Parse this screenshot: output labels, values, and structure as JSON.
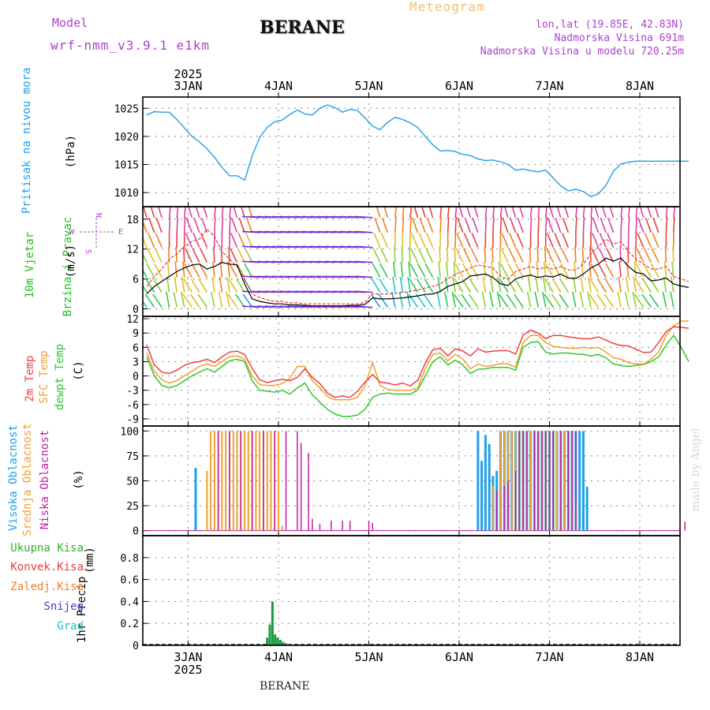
{
  "header": {
    "model_label": "Model",
    "model_value": "wrf-nmm_v3.9.1 e1km",
    "station": "BERANE",
    "title": "Meteogram",
    "lonlat": "lon,lat (19.85E, 42.83N)",
    "elevation": "Nadmorska Visina 691m",
    "model_elevation": "Nadmorska Visina u modelu 720.25m",
    "footer_station": "BERANE",
    "credit": "made by Angel"
  },
  "colors": {
    "pressure": "#1ea0e8",
    "wind_speed": "#000000",
    "gust": "#e83c3c",
    "temp2m": "#f04040",
    "sfc": "#f0a030",
    "dewpt": "#30c830",
    "cloud_high": "#1ea0e8",
    "cloud_mid": "#f0a030",
    "cloud_low": "#c020a0",
    "precip_total": "#1a9a40",
    "snow": "#4040d8",
    "label_purple": "#b040d0",
    "label_orange": "#f0b040"
  },
  "chart_data": [
    {
      "type": "line",
      "name": "pressure",
      "ylabel_title": "Pritisak na nivou mora",
      "ylabel_unit": "(hPa)",
      "ylim": [
        1007.5,
        1027
      ],
      "yticks": [
        1010,
        1015,
        1020,
        1025
      ],
      "x_hours": [
        0,
        2,
        4,
        6,
        8,
        10,
        12,
        14,
        16,
        18,
        20,
        22,
        24,
        26,
        28,
        30,
        32,
        34,
        36,
        38,
        40,
        42,
        44,
        46,
        48,
        50,
        52,
        54,
        56,
        58,
        60,
        62,
        64,
        66,
        68,
        70,
        72,
        74,
        76,
        78,
        80,
        82,
        84,
        86,
        88,
        90,
        92,
        94,
        96,
        98,
        100,
        102,
        104,
        106,
        108,
        110,
        112,
        114,
        116,
        118,
        120,
        122,
        124,
        126,
        128,
        130,
        132,
        134,
        136,
        138,
        140,
        142,
        144
      ],
      "series": [
        {
          "values": [
            1023.8,
            1024.4,
            1024.3,
            1024.3,
            1023.0,
            1021.5,
            1020.0,
            1019.0,
            1017.8,
            1016.3,
            1014.5,
            1013.0,
            1013.0,
            1012.2,
            1016.5,
            1019.8,
            1021.6,
            1022.6,
            1022.9,
            1023.9,
            1024.7,
            1024.0,
            1023.8,
            1025.0,
            1025.6,
            1025.1,
            1024.3,
            1024.8,
            1024.6,
            1023.3,
            1021.8,
            1021.2,
            1022.5,
            1023.4,
            1023.0,
            1022.4,
            1021.6,
            1020.0,
            1018.5,
            1017.4,
            1017.5,
            1017.3,
            1016.8,
            1016.6,
            1016.0,
            1015.7,
            1015.8,
            1015.5,
            1015.0,
            1014.0,
            1014.2,
            1013.9,
            1013.7,
            1014.0,
            1012.6,
            1011.2,
            1010.3,
            1010.6,
            1010.2,
            1009.3,
            1009.8,
            1011.3,
            1013.8,
            1015.1,
            1015.4,
            1015.6,
            1015.6,
            1015.6,
            1015.6,
            1015.6,
            1015.6,
            1015.6,
            1015.6
          ]
        }
      ]
    },
    {
      "type": "line",
      "name": "wind",
      "ylabel_title": "10m Vjetar",
      "ylabel_title2": "Brzina i Pravac",
      "ylabel_unit": "(m/s)",
      "compass": {
        "n": "N",
        "w": "W",
        "e": "E",
        "s": "S"
      },
      "ylim": [
        -1.5,
        20.5
      ],
      "yticks": [
        0,
        6,
        12,
        18
      ],
      "x_hours": [
        0,
        2,
        4,
        6,
        8,
        10,
        12,
        14,
        16,
        18,
        20,
        22,
        24,
        26,
        28,
        30,
        32,
        34,
        36,
        38,
        40,
        42,
        44,
        46,
        48,
        50,
        52,
        54,
        56,
        58,
        60,
        62,
        64,
        66,
        68,
        70,
        72,
        74,
        76,
        78,
        80,
        82,
        84,
        86,
        88,
        90,
        92,
        94,
        96,
        98,
        100,
        102,
        104,
        106,
        108,
        110,
        112,
        114,
        116,
        118,
        120,
        122,
        124,
        126,
        128,
        130,
        132,
        134,
        136,
        138,
        140,
        142,
        144
      ],
      "series": [
        {
          "name": "speed",
          "values": [
            3.0,
            4.5,
            5.5,
            6.5,
            7.5,
            8.2,
            8.8,
            9.0,
            8.0,
            8.5,
            9.3,
            9.0,
            8.8,
            5.0,
            2.0,
            1.5,
            1.2,
            1.0,
            1.0,
            0.8,
            0.8,
            0.7,
            0.6,
            0.6,
            0.6,
            0.6,
            0.6,
            0.7,
            0.7,
            0.9,
            2.2,
            2.0,
            2.0,
            2.1,
            2.2,
            2.4,
            2.6,
            2.9,
            3.0,
            3.5,
            4.5,
            5.0,
            5.5,
            6.6,
            6.8,
            7.0,
            6.3,
            5.0,
            4.7,
            6.0,
            6.5,
            6.8,
            6.3,
            6.6,
            6.4,
            7.0,
            6.2,
            6.1,
            7.0,
            8.2,
            9.0,
            10.2,
            9.6,
            10.2,
            8.5,
            7.3,
            7.0,
            5.6,
            5.8,
            6.2,
            5.0,
            4.6,
            4.3
          ]
        },
        {
          "name": "gust",
          "values": [
            4.5,
            6.5,
            8.0,
            10.0,
            11.0,
            12.5,
            13.5,
            14.0,
            16.0,
            14.5,
            11.5,
            10.0,
            8.5,
            6.0,
            3.0,
            2.3,
            1.8,
            1.5,
            1.5,
            1.2,
            1.2,
            1.0,
            1.0,
            1.0,
            1.0,
            1.0,
            1.0,
            1.0,
            1.0,
            1.3,
            3.0,
            3.0,
            3.0,
            3.1,
            3.3,
            3.5,
            3.8,
            4.2,
            4.5,
            5.0,
            6.0,
            7.0,
            7.5,
            8.2,
            8.8,
            8.5,
            8.2,
            6.5,
            6.0,
            7.5,
            8.0,
            8.5,
            8.0,
            8.3,
            8.0,
            8.5,
            7.8,
            7.8,
            9.0,
            11.0,
            12.5,
            14.0,
            13.0,
            13.5,
            11.5,
            10.0,
            9.0,
            8.0,
            8.0,
            8.5,
            6.5,
            6.0,
            5.5
          ]
        }
      ]
    },
    {
      "type": "line",
      "name": "temperature",
      "ylabel_title": "2m Temp",
      "ylabel_title2": "SFC Temp",
      "ylabel_title3": "dewpt Temp",
      "ylabel_unit": "(C)",
      "ylim": [
        -10.5,
        12.5
      ],
      "yticks": [
        -9,
        -6,
        -3,
        0,
        3,
        6,
        9,
        12
      ],
      "x_hours": [
        0,
        2,
        4,
        6,
        8,
        10,
        12,
        14,
        16,
        18,
        20,
        22,
        24,
        26,
        28,
        30,
        32,
        34,
        36,
        38,
        40,
        42,
        44,
        46,
        48,
        50,
        52,
        54,
        56,
        58,
        60,
        62,
        64,
        66,
        68,
        70,
        72,
        74,
        76,
        78,
        80,
        82,
        84,
        86,
        88,
        90,
        92,
        94,
        96,
        98,
        100,
        102,
        104,
        106,
        108,
        110,
        112,
        114,
        116,
        118,
        120,
        122,
        124,
        126,
        128,
        130,
        132,
        134,
        136,
        138,
        140,
        142,
        144
      ],
      "series": [
        {
          "name": "t2m",
          "values": [
            6.5,
            2.3,
            0.8,
            0.5,
            1.2,
            2.2,
            2.8,
            3.0,
            3.5,
            2.8,
            4.0,
            5.0,
            5.2,
            4.5,
            1.6,
            -0.8,
            -1.4,
            -1.0,
            -0.7,
            -1.0,
            -0.3,
            1.5,
            -0.3,
            -1.6,
            -3.6,
            -4.5,
            -4.2,
            -4.5,
            -3.2,
            -1.3,
            0.3,
            -1.3,
            -1.5,
            -1.9,
            -1.5,
            -2.1,
            -0.9,
            2.7,
            5.5,
            5.8,
            4.2,
            5.7,
            5.2,
            4.2,
            5.7,
            5.0,
            5.2,
            5.3,
            5.3,
            4.6,
            8.6,
            9.6,
            9.0,
            7.8,
            8.5,
            8.5,
            8.2,
            8.0,
            7.8,
            7.8,
            8.2,
            7.5,
            6.8,
            6.4,
            6.3,
            5.6,
            4.9,
            5.0,
            7.0,
            9.3,
            10.3,
            10.2,
            10.0
          ]
        },
        {
          "name": "sfc",
          "values": [
            4.8,
            1.0,
            -0.8,
            -1.5,
            -1.0,
            0.0,
            1.0,
            2.0,
            2.5,
            2.0,
            3.0,
            4.0,
            4.2,
            3.5,
            0.0,
            -1.8,
            -2.0,
            -2.0,
            -1.6,
            -0.5,
            2.0,
            2.0,
            -1.0,
            -2.5,
            -4.3,
            -5.0,
            -5.0,
            -5.0,
            -4.5,
            -2.0,
            2.8,
            -2.0,
            -2.8,
            -3.0,
            -3.0,
            -3.0,
            -2.5,
            1.5,
            4.5,
            4.8,
            3.2,
            4.5,
            3.5,
            1.5,
            2.5,
            2.0,
            2.2,
            2.6,
            2.5,
            1.8,
            7.0,
            8.5,
            8.5,
            7.0,
            6.2,
            6.0,
            5.8,
            5.8,
            6.0,
            5.8,
            6.0,
            5.0,
            3.8,
            3.5,
            2.8,
            2.5,
            2.5,
            3.5,
            5.0,
            8.5,
            10.5,
            11.5,
            11.5
          ]
        },
        {
          "name": "dewpt",
          "values": [
            4.0,
            0.0,
            -2.0,
            -2.5,
            -2.0,
            -1.0,
            0.0,
            0.8,
            1.5,
            0.8,
            2.0,
            3.2,
            3.5,
            3.0,
            -1.0,
            -3.0,
            -3.2,
            -3.4,
            -3.0,
            -3.8,
            -2.5,
            -1.5,
            -4.0,
            -5.5,
            -7.0,
            -8.0,
            -8.5,
            -8.5,
            -8.2,
            -7.0,
            -4.5,
            -3.8,
            -3.6,
            -3.8,
            -3.8,
            -3.8,
            -3.0,
            0.0,
            3.0,
            4.0,
            2.3,
            3.3,
            2.3,
            0.5,
            1.4,
            1.5,
            1.8,
            1.8,
            1.8,
            1.2,
            6.0,
            7.0,
            7.2,
            5.0,
            4.6,
            4.8,
            4.8,
            4.6,
            4.5,
            4.2,
            4.5,
            3.8,
            2.5,
            2.2,
            2.0,
            2.2,
            2.4,
            3.0,
            4.0,
            6.5,
            8.5,
            6.0,
            3.0
          ]
        }
      ]
    },
    {
      "type": "bar",
      "name": "clouds",
      "ylabel_title": "Visoka Oblacnost",
      "ylabel_title2": "Srednja Oblacnost",
      "ylabel_title3": "Niska Oblacnost",
      "ylabel_unit": "(%)",
      "ylim": [
        -5,
        105
      ],
      "yticks": [
        0,
        25,
        50,
        75,
        100
      ],
      "high": {
        "x_hours": [
          13,
          88,
          89,
          90,
          91,
          92,
          93,
          94,
          95,
          96,
          97,
          98,
          99,
          100,
          101,
          102,
          103,
          104,
          105,
          106,
          107,
          108,
          109,
          110,
          111,
          112,
          113,
          114,
          115,
          116,
          117
        ],
        "values": [
          63,
          100,
          70,
          96,
          87,
          55,
          60,
          100,
          100,
          100,
          100,
          100,
          100,
          100,
          100,
          100,
          100,
          100,
          100,
          100,
          100,
          100,
          100,
          100,
          100,
          100,
          100,
          100,
          100,
          100,
          44
        ]
      },
      "mid": {
        "x_hours": [
          16,
          17,
          18,
          19,
          20,
          21,
          22,
          23,
          24,
          25,
          26,
          27,
          28,
          29,
          30,
          31,
          32,
          33,
          34,
          35,
          36,
          92,
          94,
          95,
          96,
          97,
          98,
          99,
          100,
          101,
          102,
          103,
          104,
          105,
          106,
          107,
          108,
          109,
          110,
          111,
          112,
          113,
          114
        ],
        "values": [
          60,
          100,
          100,
          100,
          100,
          100,
          100,
          100,
          100,
          100,
          100,
          100,
          100,
          100,
          100,
          100,
          100,
          100,
          100,
          100,
          5,
          45,
          100,
          100,
          100,
          100,
          100,
          100,
          100,
          100,
          100,
          100,
          100,
          100,
          100,
          100,
          100,
          100,
          100,
          100,
          100,
          100,
          30
        ]
      },
      "low": {
        "x_hours": [
          19,
          22,
          25,
          28,
          31,
          34,
          37,
          40,
          41,
          43,
          44,
          46,
          49,
          52,
          54,
          59,
          60,
          93,
          95,
          96,
          98,
          99,
          100,
          101,
          103,
          104,
          105,
          106,
          107,
          108,
          110,
          112,
          113,
          114,
          143
        ],
        "values": [
          100,
          100,
          100,
          100,
          100,
          100,
          100,
          100,
          88,
          78,
          12,
          7,
          10,
          10,
          10,
          10,
          8,
          40,
          45,
          50,
          60,
          100,
          100,
          100,
          100,
          100,
          100,
          100,
          100,
          100,
          100,
          100,
          100,
          100,
          9
        ]
      }
    },
    {
      "type": "bar",
      "name": "precip",
      "ylabel_title": "1hr Precip",
      "ylabel_unit": "(mm)",
      "ylim": [
        0,
        1.0
      ],
      "yticks": [
        0,
        0.2,
        0.4,
        0.6,
        0.8
      ],
      "legend": [
        "Ukupna Kisa",
        "Konvek.Kisa",
        "Zaledj.Kisa",
        "Snijeg",
        "Grad"
      ],
      "x_hours": [
        32.0,
        32.7,
        33.4,
        34.1,
        34.8,
        35.5,
        36.2,
        36.9,
        37.6
      ],
      "values": [
        0.07,
        0.19,
        0.4,
        0.1,
        0.07,
        0.05,
        0.03,
        0.02,
        0.01
      ]
    }
  ],
  "time_axis": {
    "start_hour_offset": 11,
    "days": [
      "3JAN",
      "4JAN",
      "5JAN",
      "6JAN",
      "7JAN",
      "8JAN"
    ],
    "year": "2025"
  }
}
